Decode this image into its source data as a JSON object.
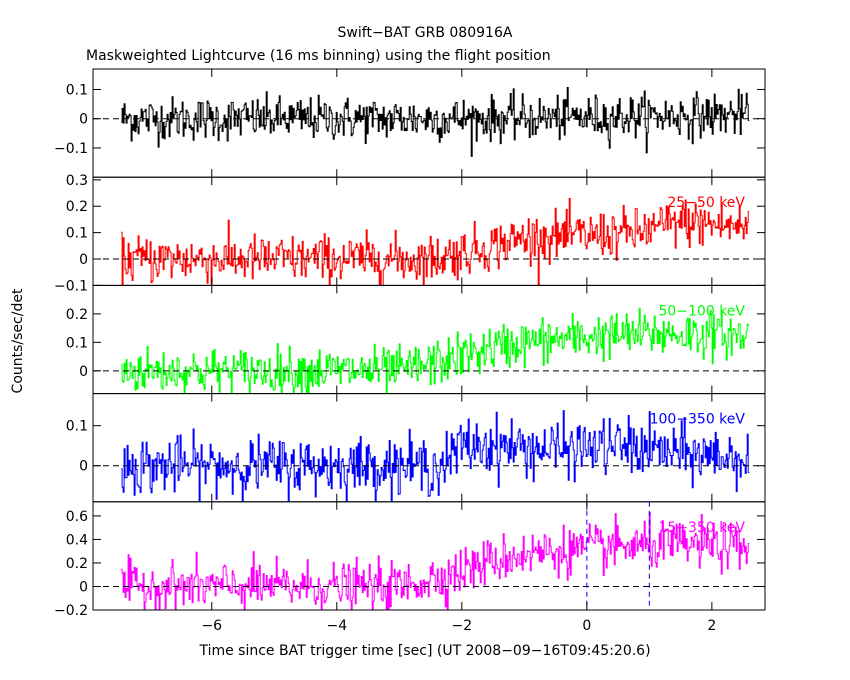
{
  "chart_data": {
    "type": "line",
    "title": "Swift−BAT GRB 080916A",
    "subtitle": "Maskweighted Lightcurve (16 ms binning) using the flight position",
    "xlabel": "Time since BAT trigger time [sec] (UT 2008−09−16T09:45:20.6)",
    "ylabel": "Counts/sec/det",
    "xlim": [
      -7.9,
      2.85
    ],
    "x_ticks": [
      -6,
      -4,
      -2,
      0,
      2
    ],
    "x_tick_labels": [
      "−6",
      "−4",
      "−2",
      "0",
      "2"
    ],
    "data_range": [
      -7.45,
      2.6
    ],
    "bin_width_sec": 0.016,
    "vertical_markers": [
      0,
      1.0
    ],
    "marker_color": "#0000ff",
    "panels": [
      {
        "band_label": "",
        "color": "#000000",
        "ylim": [
          -0.2,
          0.17
        ],
        "y_ticks": [
          -0.1,
          0,
          0.1
        ],
        "y_tick_labels": [
          "−0.1",
          "0",
          "0.1"
        ],
        "zero_line": true,
        "noise": 0.037,
        "profile": [
          [
            -7.45,
            0.0
          ],
          [
            -1.5,
            0.0
          ],
          [
            0.0,
            0.005
          ],
          [
            2.6,
            0.015
          ]
        ]
      },
      {
        "band_label": "25−50 keV",
        "color": "#ff0000",
        "ylim": [
          -0.1,
          0.31
        ],
        "y_ticks": [
          -0.1,
          0,
          0.1,
          0.2,
          0.3
        ],
        "y_tick_labels": [
          "−0.1",
          "0",
          "0.1",
          "0.2",
          "0.3"
        ],
        "zero_line": true,
        "noise": 0.045,
        "profile": [
          [
            -7.45,
            0.0
          ],
          [
            -2.5,
            0.0
          ],
          [
            -1.5,
            0.05
          ],
          [
            -1.0,
            0.08
          ],
          [
            0.0,
            0.09
          ],
          [
            0.8,
            0.1
          ],
          [
            1.5,
            0.14
          ],
          [
            2.6,
            0.12
          ]
        ]
      },
      {
        "band_label": "50−100 keV",
        "color": "#00ff00",
        "ylim": [
          -0.08,
          0.3
        ],
        "y_ticks": [
          0,
          0.1,
          0.2
        ],
        "y_tick_labels": [
          "0",
          "0.1",
          "0.2"
        ],
        "zero_line": true,
        "noise": 0.04,
        "profile": [
          [
            -7.45,
            0.0
          ],
          [
            -3.0,
            0.0
          ],
          [
            -2.2,
            0.04
          ],
          [
            -1.5,
            0.08
          ],
          [
            -1.0,
            0.1
          ],
          [
            0.0,
            0.12
          ],
          [
            1.0,
            0.13
          ],
          [
            2.0,
            0.13
          ],
          [
            2.6,
            0.12
          ]
        ]
      },
      {
        "band_label": "100−350 keV",
        "color": "#0000ff",
        "ylim": [
          -0.09,
          0.18
        ],
        "y_ticks": [
          0,
          0.1
        ],
        "y_tick_labels": [
          "0",
          "0.1"
        ],
        "zero_line": true,
        "noise": 0.035,
        "profile": [
          [
            -7.45,
            0.0
          ],
          [
            -2.3,
            0.0
          ],
          [
            -2.0,
            0.05
          ],
          [
            -1.5,
            0.05
          ],
          [
            -0.5,
            0.04
          ],
          [
            0.5,
            0.05
          ],
          [
            1.5,
            0.03
          ],
          [
            2.6,
            0.02
          ]
        ]
      },
      {
        "band_label": "15−350 keV",
        "color": "#ff00ff",
        "ylim": [
          -0.2,
          0.72
        ],
        "y_ticks": [
          -0.2,
          0,
          0.2,
          0.4,
          0.6
        ],
        "y_tick_labels": [
          "−0.2",
          "0",
          "0.2",
          "0.4",
          "0.6"
        ],
        "zero_line": true,
        "noise": 0.1,
        "profile": [
          [
            -7.45,
            0.0
          ],
          [
            -3.0,
            0.0
          ],
          [
            -2.2,
            0.1
          ],
          [
            -1.5,
            0.22
          ],
          [
            -1.0,
            0.28
          ],
          [
            0.0,
            0.32
          ],
          [
            1.0,
            0.35
          ],
          [
            2.0,
            0.35
          ],
          [
            2.6,
            0.32
          ]
        ]
      }
    ]
  }
}
